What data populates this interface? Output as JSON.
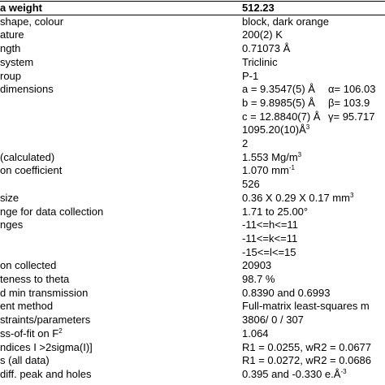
{
  "table": {
    "rows": [
      {
        "label": "a weight",
        "value": "512.23"
      },
      {
        "label": "shape, colour",
        "value": "block, dark orange"
      },
      {
        "label": "ature",
        "value": "200(2) K"
      },
      {
        "label": "ngth",
        "value": "0.71073 Å"
      },
      {
        "label": "system",
        "value": "Triclinic"
      },
      {
        "label": "roup",
        "value": "P-1"
      },
      {
        "label": "dimensions",
        "value": "a = 9.3547(5) Å",
        "angle": "α= 106.03"
      },
      {
        "value": "b = 9.8985(5) Å",
        "angle": "β= 103.9"
      },
      {
        "value": "c = 12.8840(7) Å",
        "angle": "γ= 95.717"
      },
      {
        "value": "1095.20(10)Å",
        "sup": "3"
      },
      {
        "value": "2"
      },
      {
        "label": "(calculated)",
        "value": "1.553 Mg/m",
        "sup": "3"
      },
      {
        "label": "on coefficient",
        "value": "1.070 mm",
        "sup": "-1"
      },
      {
        "value": "526"
      },
      {
        "label": "size",
        "value": "0.36 X 0.29 X 0.17 mm",
        "sup": "3"
      },
      {
        "label": "nge for data collection",
        "value": "1.71 to 25.00°"
      },
      {
        "label": "nges",
        "value": "-11<=h<=11"
      },
      {
        "value": "-11<=k<=11"
      },
      {
        "value": "-15<=l<=15"
      },
      {
        "label": "on collected",
        "value": "20903"
      },
      {
        "label": "teness to theta",
        "value": "98.7 %"
      },
      {
        "label": "d min transmission",
        "value": "0.8390 and 0.6993"
      },
      {
        "label": "ent method",
        "value": "Full-matrix least-squares m"
      },
      {
        "label": "straints/parameters",
        "value": "3806/ 0 / 307"
      },
      {
        "label": "ss-of-fit on F",
        "label_sup": "2",
        "value": "1.064"
      },
      {
        "label": "ndices I >2sigma(I)]",
        "value": "R1 = 0.0255, wR2 = 0.0677"
      },
      {
        "label": "s (all data)",
        "value": "R1 = 0.0272, wR2 = 0.0686"
      },
      {
        "label": "diff. peak and holes",
        "value": "0.395 and -0.330 e.Å",
        "sup": "-3"
      }
    ]
  }
}
